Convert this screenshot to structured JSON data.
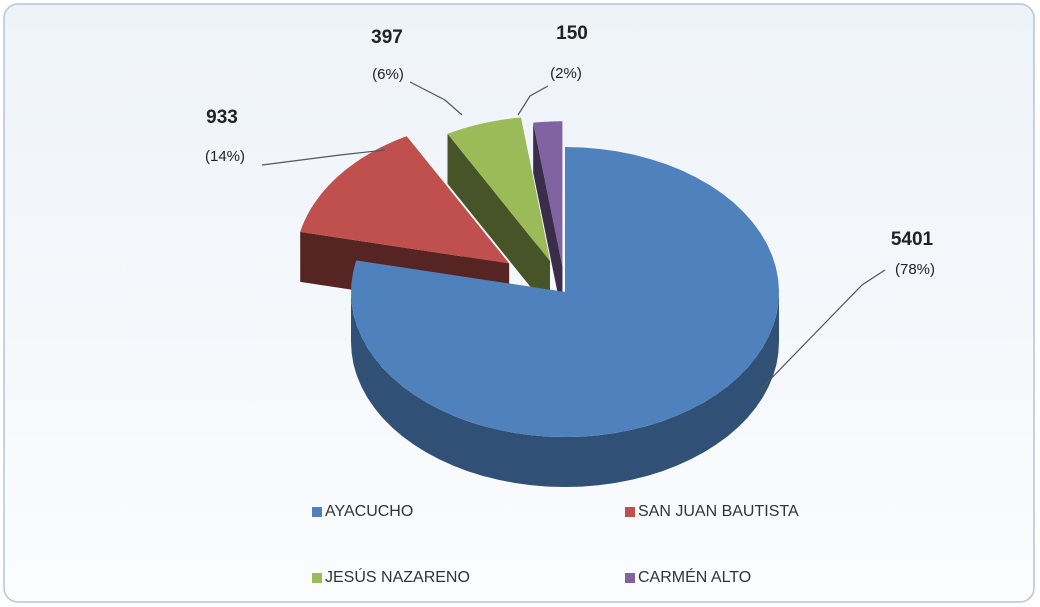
{
  "chart_data": {
    "type": "pie3d",
    "categories": [
      "AYACUCHO",
      "SAN JUAN BAUTISTA",
      "JESÚS NAZARENO",
      "CARMÉN ALTO"
    ],
    "values": [
      5401,
      933,
      397,
      150
    ],
    "percent_labels": [
      "(78%)",
      "(14%)",
      "(6%)",
      "(2%)"
    ],
    "colors": [
      "#4f81bd",
      "#c0504d",
      "#9bbb59",
      "#8064a2"
    ],
    "legend": "bottom"
  }
}
